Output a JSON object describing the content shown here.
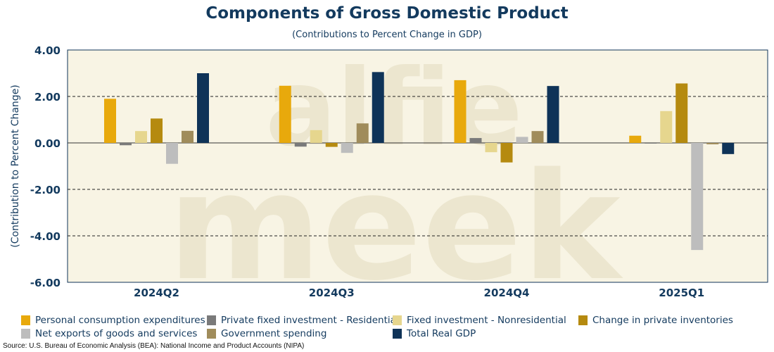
{
  "chart_data": {
    "type": "bar",
    "title": "Components of Gross Domestic Product",
    "subtitle": "(Contributions to Percent Change in GDP)",
    "ylabel": "(Contribution to Percent Change)",
    "xlabel": "",
    "ylim": [
      -6,
      4
    ],
    "yticks": [
      4,
      2,
      0,
      -2,
      -4,
      -6
    ],
    "ytick_labels": [
      "4.00",
      "2.00",
      "0.00",
      "-2.00",
      "-4.00",
      "-6.00"
    ],
    "grid": "horizontal dashed",
    "legend_position": "bottom",
    "categories": [
      "2024Q2",
      "2024Q3",
      "2024Q4",
      "2025Q1"
    ],
    "series": [
      {
        "name": "Personal consumption expenditures",
        "color": "#e8a90c",
        "values": [
          1.9,
          2.46,
          2.7,
          0.31
        ]
      },
      {
        "name": "Private fixed investment - Residential",
        "color": "#7a7a7a",
        "values": [
          -0.1,
          -0.16,
          0.21,
          -0.01
        ]
      },
      {
        "name": "Fixed investment - Nonresidential",
        "color": "#e6d68e",
        "values": [
          0.51,
          0.55,
          -0.4,
          1.37
        ]
      },
      {
        "name": "Change in private inventories",
        "color": "#b58a0f",
        "values": [
          1.05,
          -0.17,
          -0.84,
          2.56
        ]
      },
      {
        "name": "Net exports of goods and services",
        "color": "#bdbdbd",
        "values": [
          -0.9,
          -0.43,
          0.26,
          -4.61
        ]
      },
      {
        "name": "Government spending",
        "color": "#a08c5b",
        "values": [
          0.52,
          0.84,
          0.51,
          -0.06
        ]
      },
      {
        "name": "Total Real GDP",
        "color": "#0f3358",
        "values": [
          3.0,
          3.05,
          2.45,
          -0.48
        ]
      }
    ],
    "source": "Source: U.S. Bureau of Economic Analysis (BEA): National Income and Product Accounts (NIPA)"
  }
}
